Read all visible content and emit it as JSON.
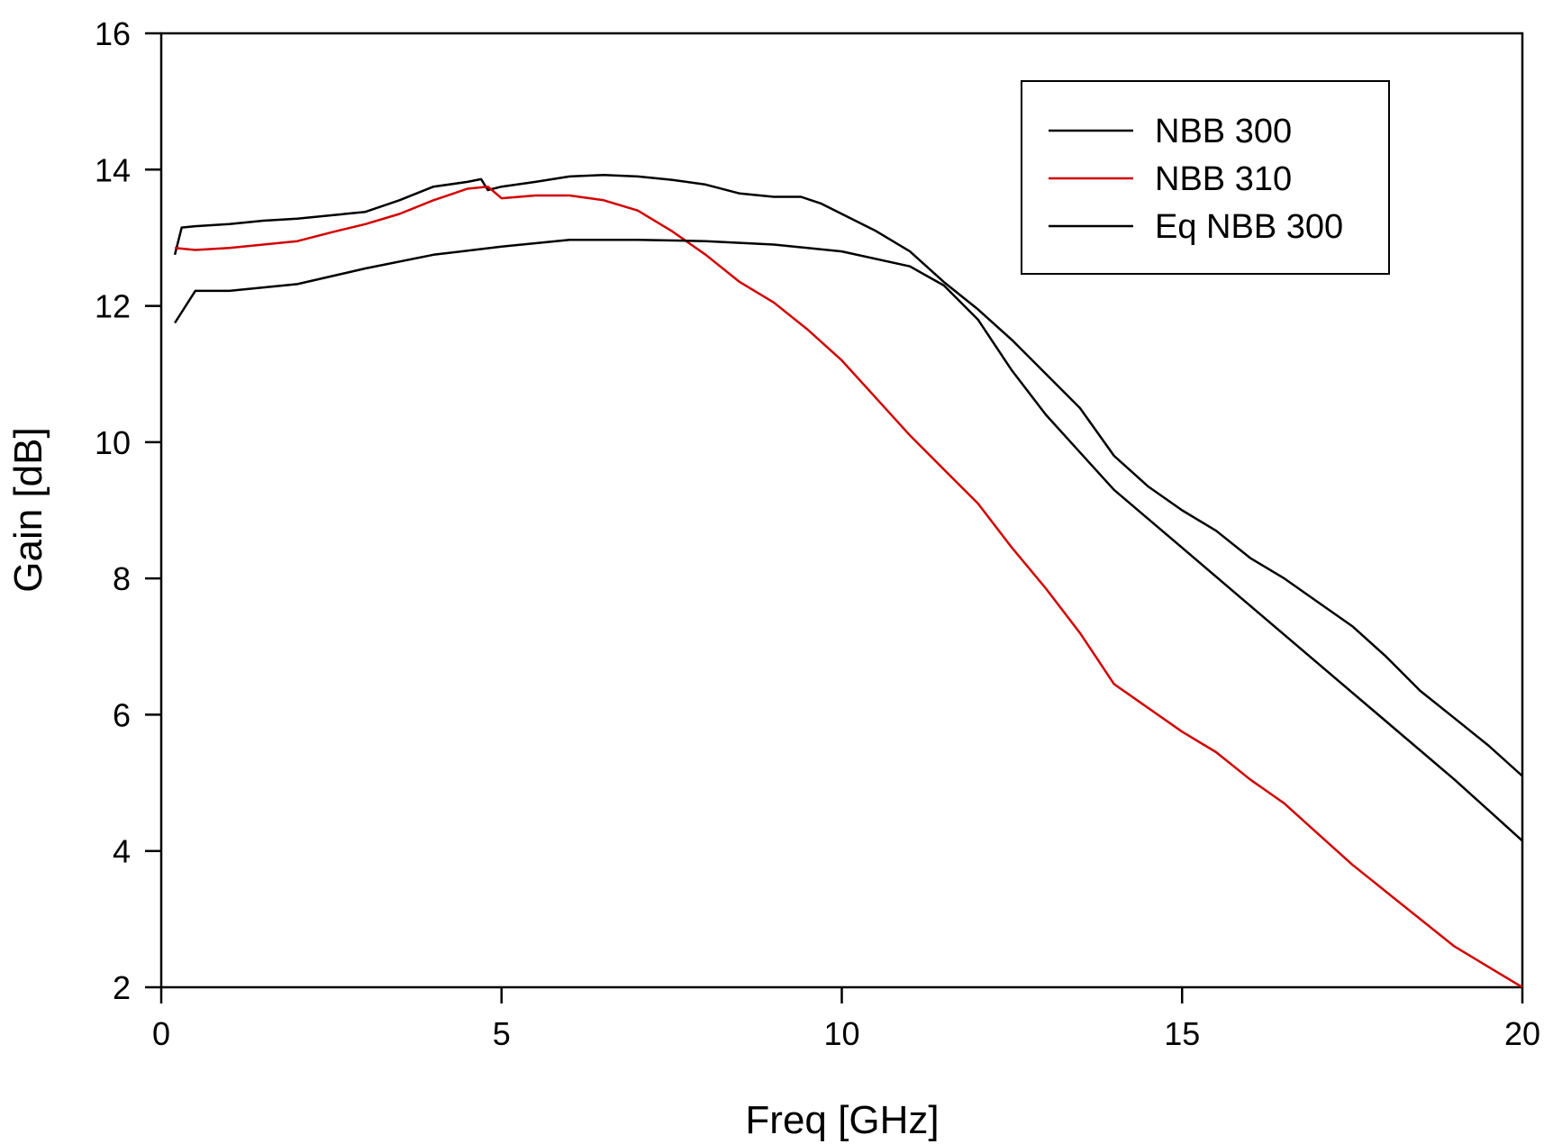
{
  "chart_data": {
    "type": "line",
    "title": "",
    "xlabel": "Freq [GHz]",
    "ylabel": "Gain [dB]",
    "xlim": [
      0,
      20
    ],
    "ylim": [
      2,
      16
    ],
    "xticks": [
      0,
      5,
      10,
      15,
      20
    ],
    "yticks": [
      2,
      4,
      6,
      8,
      10,
      12,
      14,
      16
    ],
    "grid": false,
    "legend_position": "top-right",
    "series": [
      {
        "name": "NBB 300",
        "color": "#000000",
        "x": [
          0.2,
          0.3,
          0.5,
          1.0,
          1.5,
          2.0,
          2.5,
          3.0,
          3.5,
          4.0,
          4.5,
          4.7,
          4.8,
          5.0,
          5.5,
          6.0,
          6.5,
          7.0,
          7.5,
          8.0,
          8.5,
          9.0,
          9.4,
          9.7,
          10.0,
          10.5,
          11.0,
          11.5,
          12.0,
          12.5,
          13.0,
          13.5,
          14.0,
          14.5,
          15.0,
          15.5,
          16.0,
          16.5,
          17.0,
          17.5,
          18.0,
          18.5,
          19.0,
          19.5,
          20.0
        ],
        "y": [
          12.75,
          13.15,
          13.17,
          13.2,
          13.25,
          13.28,
          13.33,
          13.38,
          13.55,
          13.75,
          13.82,
          13.86,
          13.7,
          13.75,
          13.82,
          13.9,
          13.92,
          13.9,
          13.85,
          13.78,
          13.65,
          13.6,
          13.6,
          13.5,
          13.35,
          13.1,
          12.8,
          12.35,
          11.95,
          11.5,
          11.0,
          10.5,
          9.8,
          9.35,
          9.0,
          8.7,
          8.3,
          8.0,
          7.65,
          7.3,
          6.85,
          6.35,
          5.95,
          5.55,
          5.1
        ]
      },
      {
        "name": "NBB 310",
        "color": "#d40000",
        "x": [
          0.2,
          0.5,
          1.0,
          1.5,
          2.0,
          2.5,
          3.0,
          3.5,
          4.0,
          4.5,
          4.8,
          5.0,
          5.5,
          6.0,
          6.5,
          7.0,
          7.5,
          8.0,
          8.5,
          9.0,
          9.5,
          10.0,
          10.5,
          11.0,
          11.5,
          12.0,
          12.5,
          13.0,
          13.5,
          14.0,
          14.5,
          15.0,
          15.5,
          16.0,
          16.5,
          17.0,
          17.5,
          18.0,
          18.5,
          19.0,
          19.5,
          20.0
        ],
        "y": [
          12.85,
          12.82,
          12.85,
          12.9,
          12.95,
          13.08,
          13.2,
          13.35,
          13.55,
          13.72,
          13.75,
          13.58,
          13.62,
          13.62,
          13.55,
          13.4,
          13.1,
          12.75,
          12.35,
          12.05,
          11.65,
          11.2,
          10.65,
          10.1,
          9.6,
          9.1,
          8.45,
          7.85,
          7.2,
          6.45,
          6.1,
          5.75,
          5.45,
          5.05,
          4.7,
          4.25,
          3.8,
          3.4,
          3.0,
          2.6,
          2.3,
          2.0
        ]
      },
      {
        "name": "Eq NBB 300",
        "color": "#000000",
        "x": [
          0.2,
          0.5,
          1.0,
          2.0,
          3.0,
          4.0,
          5.0,
          6.0,
          7.0,
          8.0,
          9.0,
          10.0,
          11.0,
          11.5,
          12.0,
          12.5,
          13.0,
          13.5,
          14.0,
          15.0,
          16.0,
          17.0,
          18.0,
          19.0,
          20.0
        ],
        "y": [
          11.75,
          12.22,
          12.22,
          12.32,
          12.55,
          12.75,
          12.87,
          12.97,
          12.97,
          12.95,
          12.9,
          12.8,
          12.58,
          12.3,
          11.8,
          11.05,
          10.4,
          9.85,
          9.3,
          8.45,
          7.6,
          6.75,
          5.9,
          5.05,
          4.15
        ]
      }
    ]
  }
}
